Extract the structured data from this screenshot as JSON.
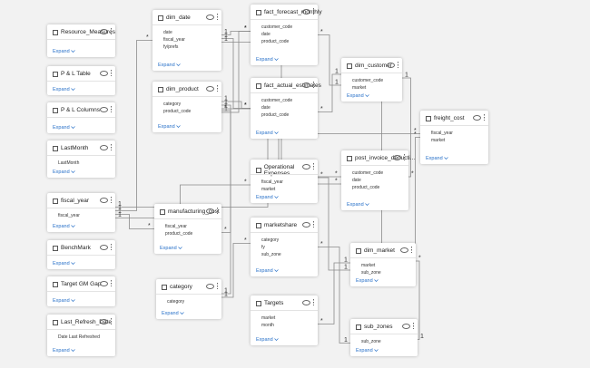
{
  "expand_label": "Expand",
  "tables": [
    {
      "name": "Resource_Measures",
      "fields": []
    },
    {
      "name": "P & L Table",
      "fields": []
    },
    {
      "name": "P & L Columns",
      "fields": []
    },
    {
      "name": "LastMonth",
      "fields": [
        "LastMonth"
      ]
    },
    {
      "name": "fiscal_year",
      "fields": [
        "fiscal_year"
      ]
    },
    {
      "name": "BenchMark",
      "fields": []
    },
    {
      "name": "Target GM Gap",
      "fields": []
    },
    {
      "name": "Last_Refresh_Date",
      "fields": [
        "Date Last Refreshed"
      ]
    },
    {
      "name": "dim_date",
      "fields": [
        "date",
        "fiscal_year",
        "fy/prefs"
      ]
    },
    {
      "name": "dim_product",
      "fields": [
        "category",
        "product_code"
      ]
    },
    {
      "name": "manufacturing_cost",
      "fields": [
        "fiscal_year",
        "product_code"
      ]
    },
    {
      "name": "category",
      "fields": [
        "category"
      ]
    },
    {
      "name": "fact_forecast_monthly",
      "fields": [
        "customer_code",
        "date",
        "product_code"
      ]
    },
    {
      "name": "fact_actual_estimates",
      "fields": [
        "customer_code",
        "date",
        "product_code"
      ]
    },
    {
      "name": "Operational Expenses",
      "fields": [
        "fiscal_year",
        "market"
      ]
    },
    {
      "name": "marketshare",
      "fields": [
        "category",
        "fy",
        "sub_zone"
      ]
    },
    {
      "name": "Targets",
      "fields": [
        "market",
        "month"
      ]
    },
    {
      "name": "dim_customer",
      "fields": [
        "customer_code",
        "market"
      ]
    },
    {
      "name": "post_invoice_deducti...",
      "fields": [
        "customer_code",
        "date",
        "product_code"
      ]
    },
    {
      "name": "dim_market",
      "fields": [
        "market",
        "sub_zone"
      ]
    },
    {
      "name": "sub_zones",
      "fields": [
        "sub_zone"
      ]
    },
    {
      "name": "freight_cost",
      "fields": [
        "fiscal_year",
        "market"
      ]
    }
  ],
  "relationships": [
    {
      "from": "dim_date",
      "to": "fact_forecast_monthly",
      "from_end": "1",
      "to_end": "*"
    },
    {
      "from": "dim_date",
      "to": "fact_actual_estimates",
      "from_end": "1",
      "to_end": "*"
    },
    {
      "from": "dim_date",
      "to": "post_invoice_deducti...",
      "from_end": "1",
      "to_end": "*"
    },
    {
      "from": "dim_product",
      "to": "fact_forecast_monthly",
      "from_end": "1",
      "to_end": "*"
    },
    {
      "from": "dim_product",
      "to": "fact_actual_estimates",
      "from_end": "1",
      "to_end": "*"
    },
    {
      "from": "dim_product",
      "to": "manufacturing_cost",
      "from_end": "1",
      "to_end": "*"
    },
    {
      "from": "dim_product",
      "to": "post_invoice_deducti...",
      "from_end": "1",
      "to_end": "*"
    },
    {
      "from": "dim_customer",
      "to": "fact_forecast_monthly",
      "from_end": "1",
      "to_end": "*"
    },
    {
      "from": "dim_customer",
      "to": "fact_actual_estimates",
      "from_end": "1",
      "to_end": "*"
    },
    {
      "from": "dim_customer",
      "to": "post_invoice_deducti...",
      "from_end": "1",
      "to_end": "*"
    },
    {
      "from": "fiscal_year",
      "to": "manufacturing_cost",
      "from_end": "1",
      "to_end": "*"
    },
    {
      "from": "fiscal_year",
      "to": "Operational Expenses",
      "from_end": "1",
      "to_end": "*"
    },
    {
      "from": "fiscal_year",
      "to": "freight_cost",
      "from_end": "1",
      "to_end": "*"
    },
    {
      "from": "fiscal_year",
      "to": "dim_date",
      "from_end": "1",
      "to_end": "*"
    },
    {
      "from": "dim_market",
      "to": "dim_customer",
      "from_end": "1",
      "to_end": "*"
    },
    {
      "from": "dim_market",
      "to": "Operational Expenses",
      "from_end": "1",
      "to_end": "*"
    },
    {
      "from": "dim_market",
      "to": "freight_cost",
      "from_end": "1",
      "to_end": "*"
    },
    {
      "from": "dim_market",
      "to": "Targets",
      "from_end": "1",
      "to_end": "*"
    },
    {
      "from": "sub_zones",
      "to": "dim_market",
      "from_end": "1",
      "to_end": "*"
    },
    {
      "from": "sub_zones",
      "to": "marketshare",
      "from_end": "1",
      "to_end": "*"
    },
    {
      "from": "category",
      "to": "dim_product",
      "from_end": "1",
      "to_end": "*"
    },
    {
      "from": "category",
      "to": "marketshare",
      "from_end": "1",
      "to_end": "*"
    }
  ]
}
